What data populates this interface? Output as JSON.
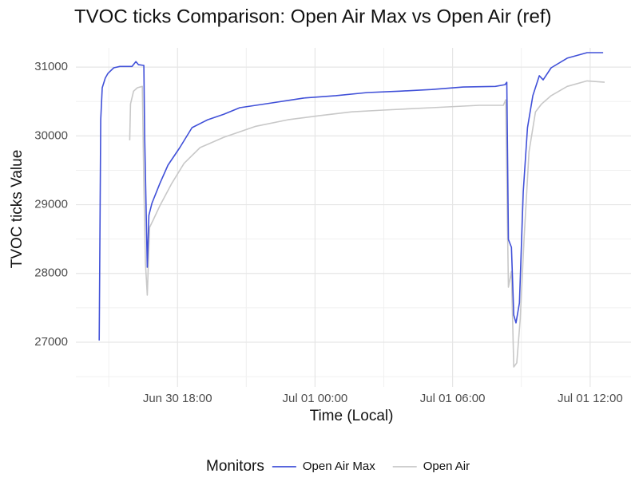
{
  "chart_data": {
    "type": "line",
    "title": "TVOC ticks Comparison: Open Air Max vs Open Air (ref)",
    "x_label": "Time (Local)",
    "y_label": "TVOC ticks Value",
    "legend_title": "Monitors",
    "legend_position": "bottom",
    "grid": true,
    "xlim": [
      "Jun 30 13:34",
      "Jul 01 13:47"
    ],
    "xticks": [
      "Jun 30 18:00",
      "Jul 01 00:00",
      "Jul 01 06:00",
      "Jul 01 12:00"
    ],
    "ylim": [
      26350,
      31280
    ],
    "yticks": [
      27000,
      28000,
      29000,
      30000,
      31000
    ],
    "series": [
      {
        "name": "Open Air Max",
        "color": "#4050d8",
        "x": [
          "Jun 30 14:35",
          "Jun 30 14:39",
          "Jun 30 14:43",
          "Jun 30 14:51",
          "Jun 30 14:58",
          "Jun 30 15:13",
          "Jun 30 15:29",
          "Jun 30 16:01",
          "Jun 30 16:11",
          "Jun 30 16:18",
          "Jun 30 16:32",
          "Jun 30 16:34",
          "Jun 30 16:41",
          "Jun 30 16:45",
          "Jun 30 16:53",
          "Jun 30 17:14",
          "Jun 30 17:35",
          "Jun 30 18:06",
          "Jun 30 18:38",
          "Jun 30 19:19",
          "Jun 30 20:01",
          "Jun 30 20:43",
          "Jun 30 22:07",
          "Jun 30 23:30",
          "Jul 01 00:54",
          "Jul 01 02:17",
          "Jul 01 03:41",
          "Jul 01 05:05",
          "Jul 01 06:28",
          "Jul 01 07:52",
          "Jul 01 08:17",
          "Jul 01 08:22",
          "Jul 01 08:26",
          "Jul 01 08:34",
          "Jul 01 08:40",
          "Jul 01 08:46",
          "Jul 01 08:55",
          "Jul 01 09:05",
          "Jul 01 09:16",
          "Jul 01 09:30",
          "Jul 01 09:47",
          "Jul 01 09:57",
          "Jul 01 10:18",
          "Jul 01 11:00",
          "Jul 01 11:52",
          "Jul 01 12:34"
        ],
        "values": [
          27025,
          30235,
          30700,
          30840,
          30910,
          30990,
          31010,
          31010,
          31080,
          31035,
          31025,
          30000,
          28090,
          28845,
          29020,
          29310,
          29575,
          29830,
          30120,
          30235,
          30315,
          30410,
          30480,
          30550,
          30585,
          30630,
          30650,
          30675,
          30710,
          30720,
          30745,
          30780,
          28495,
          28380,
          27395,
          27280,
          27570,
          29190,
          30120,
          30585,
          30875,
          30815,
          30990,
          31130,
          31210,
          31210
        ]
      },
      {
        "name": "Open Air",
        "color": "#c8c8c8",
        "x": [
          "Jun 30 15:55",
          "Jun 30 15:57",
          "Jun 30 16:05",
          "Jun 30 16:15",
          "Jun 30 16:28",
          "Jun 30 16:32",
          "Jun 30 16:36",
          "Jun 30 16:41",
          "Jun 30 16:47",
          "Jun 30 16:57",
          "Jun 30 17:14",
          "Jun 30 17:45",
          "Jun 30 18:17",
          "Jun 30 18:59",
          "Jun 30 20:01",
          "Jun 30 21:25",
          "Jun 30 22:49",
          "Jul 01 00:12",
          "Jul 01 01:36",
          "Jul 01 02:59",
          "Jul 01 05:05",
          "Jul 01 07:10",
          "Jul 01 08:13",
          "Jul 01 08:19",
          "Jul 01 08:26",
          "Jul 01 08:34",
          "Jul 01 08:40",
          "Jul 01 08:48",
          "Jul 01 08:57",
          "Jul 01 09:07",
          "Jul 01 09:20",
          "Jul 01 09:37",
          "Jul 01 09:53",
          "Jul 01 10:18",
          "Jul 01 11:00",
          "Jul 01 11:52",
          "Jul 01 12:38"
        ],
        "values": [
          29935,
          30465,
          30650,
          30700,
          30720,
          29310,
          28150,
          27685,
          28670,
          28785,
          28985,
          29310,
          29600,
          29830,
          29980,
          30140,
          30235,
          30295,
          30350,
          30375,
          30410,
          30445,
          30445,
          30525,
          27800,
          28030,
          26640,
          26700,
          27340,
          28500,
          29770,
          30350,
          30465,
          30585,
          30720,
          30800,
          30780
        ]
      }
    ]
  }
}
